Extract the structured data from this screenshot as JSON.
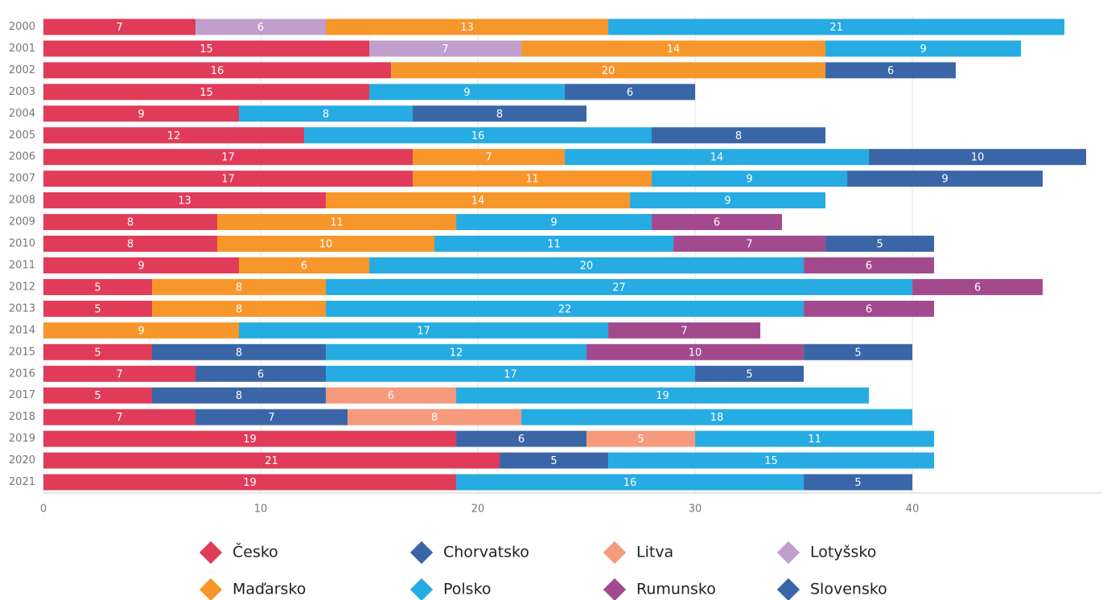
{
  "chart_data": {
    "type": "stacked-barh",
    "categories": [
      "2000",
      "2001",
      "2002",
      "2003",
      "2004",
      "2005",
      "2006",
      "2007",
      "2008",
      "2009",
      "2010",
      "2011",
      "2012",
      "2013",
      "2014",
      "2015",
      "2016",
      "2017",
      "2018",
      "2019",
      "2020",
      "2021"
    ],
    "series": [
      {
        "name": "Česko",
        "color": "#e03c5a",
        "values": [
          7,
          15,
          16,
          15,
          9,
          12,
          17,
          17,
          13,
          8,
          8,
          9,
          5,
          5,
          null,
          5,
          7,
          5,
          7,
          19,
          21,
          19
        ]
      },
      {
        "name": "Chorvatsko",
        "color": "#3a66a8",
        "values": [
          null,
          null,
          null,
          null,
          null,
          null,
          null,
          null,
          null,
          null,
          null,
          null,
          null,
          null,
          null,
          8,
          6,
          8,
          7,
          6,
          5,
          null
        ]
      },
      {
        "name": "Litva",
        "color": "#f59a7c",
        "values": [
          null,
          null,
          null,
          null,
          null,
          null,
          null,
          null,
          null,
          null,
          null,
          null,
          null,
          null,
          null,
          null,
          null,
          6,
          8,
          5,
          null,
          null
        ]
      },
      {
        "name": "Lotyšsko",
        "color": "#c09fcc",
        "values": [
          6,
          7,
          null,
          null,
          null,
          null,
          null,
          null,
          null,
          null,
          null,
          null,
          null,
          null,
          null,
          null,
          null,
          null,
          null,
          null,
          null,
          null
        ]
      },
      {
        "name": "Maďarsko",
        "color": "#f7962a",
        "values": [
          13,
          14,
          20,
          null,
          null,
          null,
          7,
          11,
          14,
          11,
          10,
          6,
          8,
          8,
          9,
          null,
          null,
          null,
          null,
          null,
          null,
          null
        ]
      },
      {
        "name": "Polsko",
        "color": "#26abe2",
        "values": [
          21,
          9,
          null,
          9,
          8,
          16,
          14,
          9,
          9,
          9,
          11,
          20,
          27,
          22,
          17,
          12,
          17,
          19,
          18,
          11,
          15,
          16
        ]
      },
      {
        "name": "Rumunsko",
        "color": "#a34a8f",
        "values": [
          null,
          null,
          null,
          null,
          null,
          null,
          null,
          null,
          null,
          6,
          7,
          6,
          6,
          6,
          7,
          10,
          null,
          null,
          null,
          null,
          null,
          null
        ]
      },
      {
        "name": "Slovensko",
        "color": "#3a66a8",
        "values": [
          null,
          null,
          6,
          6,
          8,
          8,
          10,
          9,
          null,
          null,
          5,
          null,
          null,
          null,
          null,
          5,
          5,
          null,
          null,
          null,
          null,
          5
        ]
      }
    ],
    "xlim": [
      0,
      48.7
    ],
    "xticks": [
      0,
      10,
      20,
      30,
      40
    ],
    "grid": true
  }
}
